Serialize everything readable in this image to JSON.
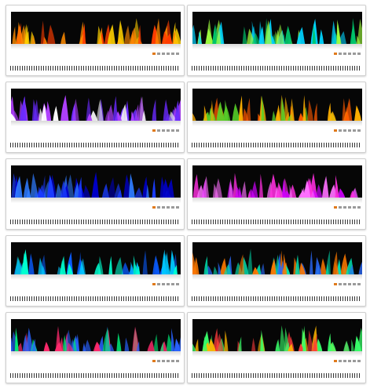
{
  "items": [
    {
      "name": "orange-fireplace",
      "colors": [
        "#ff3d00",
        "#ff8a00",
        "#ffd000"
      ]
    },
    {
      "name": "green-blue-fireplace",
      "colors": [
        "#00c46a",
        "#00d4ff",
        "#a0ff40"
      ]
    },
    {
      "name": "purple-blue-fireplace",
      "colors": [
        "#6a2bff",
        "#b040ff",
        "#ffffff"
      ]
    },
    {
      "name": "green-orange-fireplace",
      "colors": [
        "#ff5a00",
        "#ffb000",
        "#58d12a"
      ]
    },
    {
      "name": "blue-fireplace",
      "colors": [
        "#1a3cff",
        "#0000c8",
        "#2f7bff"
      ]
    },
    {
      "name": "magenta-fireplace",
      "colors": [
        "#ff2fe0",
        "#d000ff",
        "#ff70ff"
      ]
    },
    {
      "name": "cyan-fireplace",
      "colors": [
        "#00c8ff",
        "#0a5cff",
        "#00ffd0"
      ]
    },
    {
      "name": "rainbow-fireplace-a",
      "colors": [
        "#00e0b0",
        "#ff7a00",
        "#2b6bff"
      ]
    },
    {
      "name": "multicolor-fireplace",
      "colors": [
        "#00e676",
        "#ff2a6d",
        "#2962ff"
      ]
    },
    {
      "name": "rainbow-fireplace-b",
      "colors": [
        "#ff3b3b",
        "#38ff6a",
        "#ffb700"
      ]
    }
  ]
}
